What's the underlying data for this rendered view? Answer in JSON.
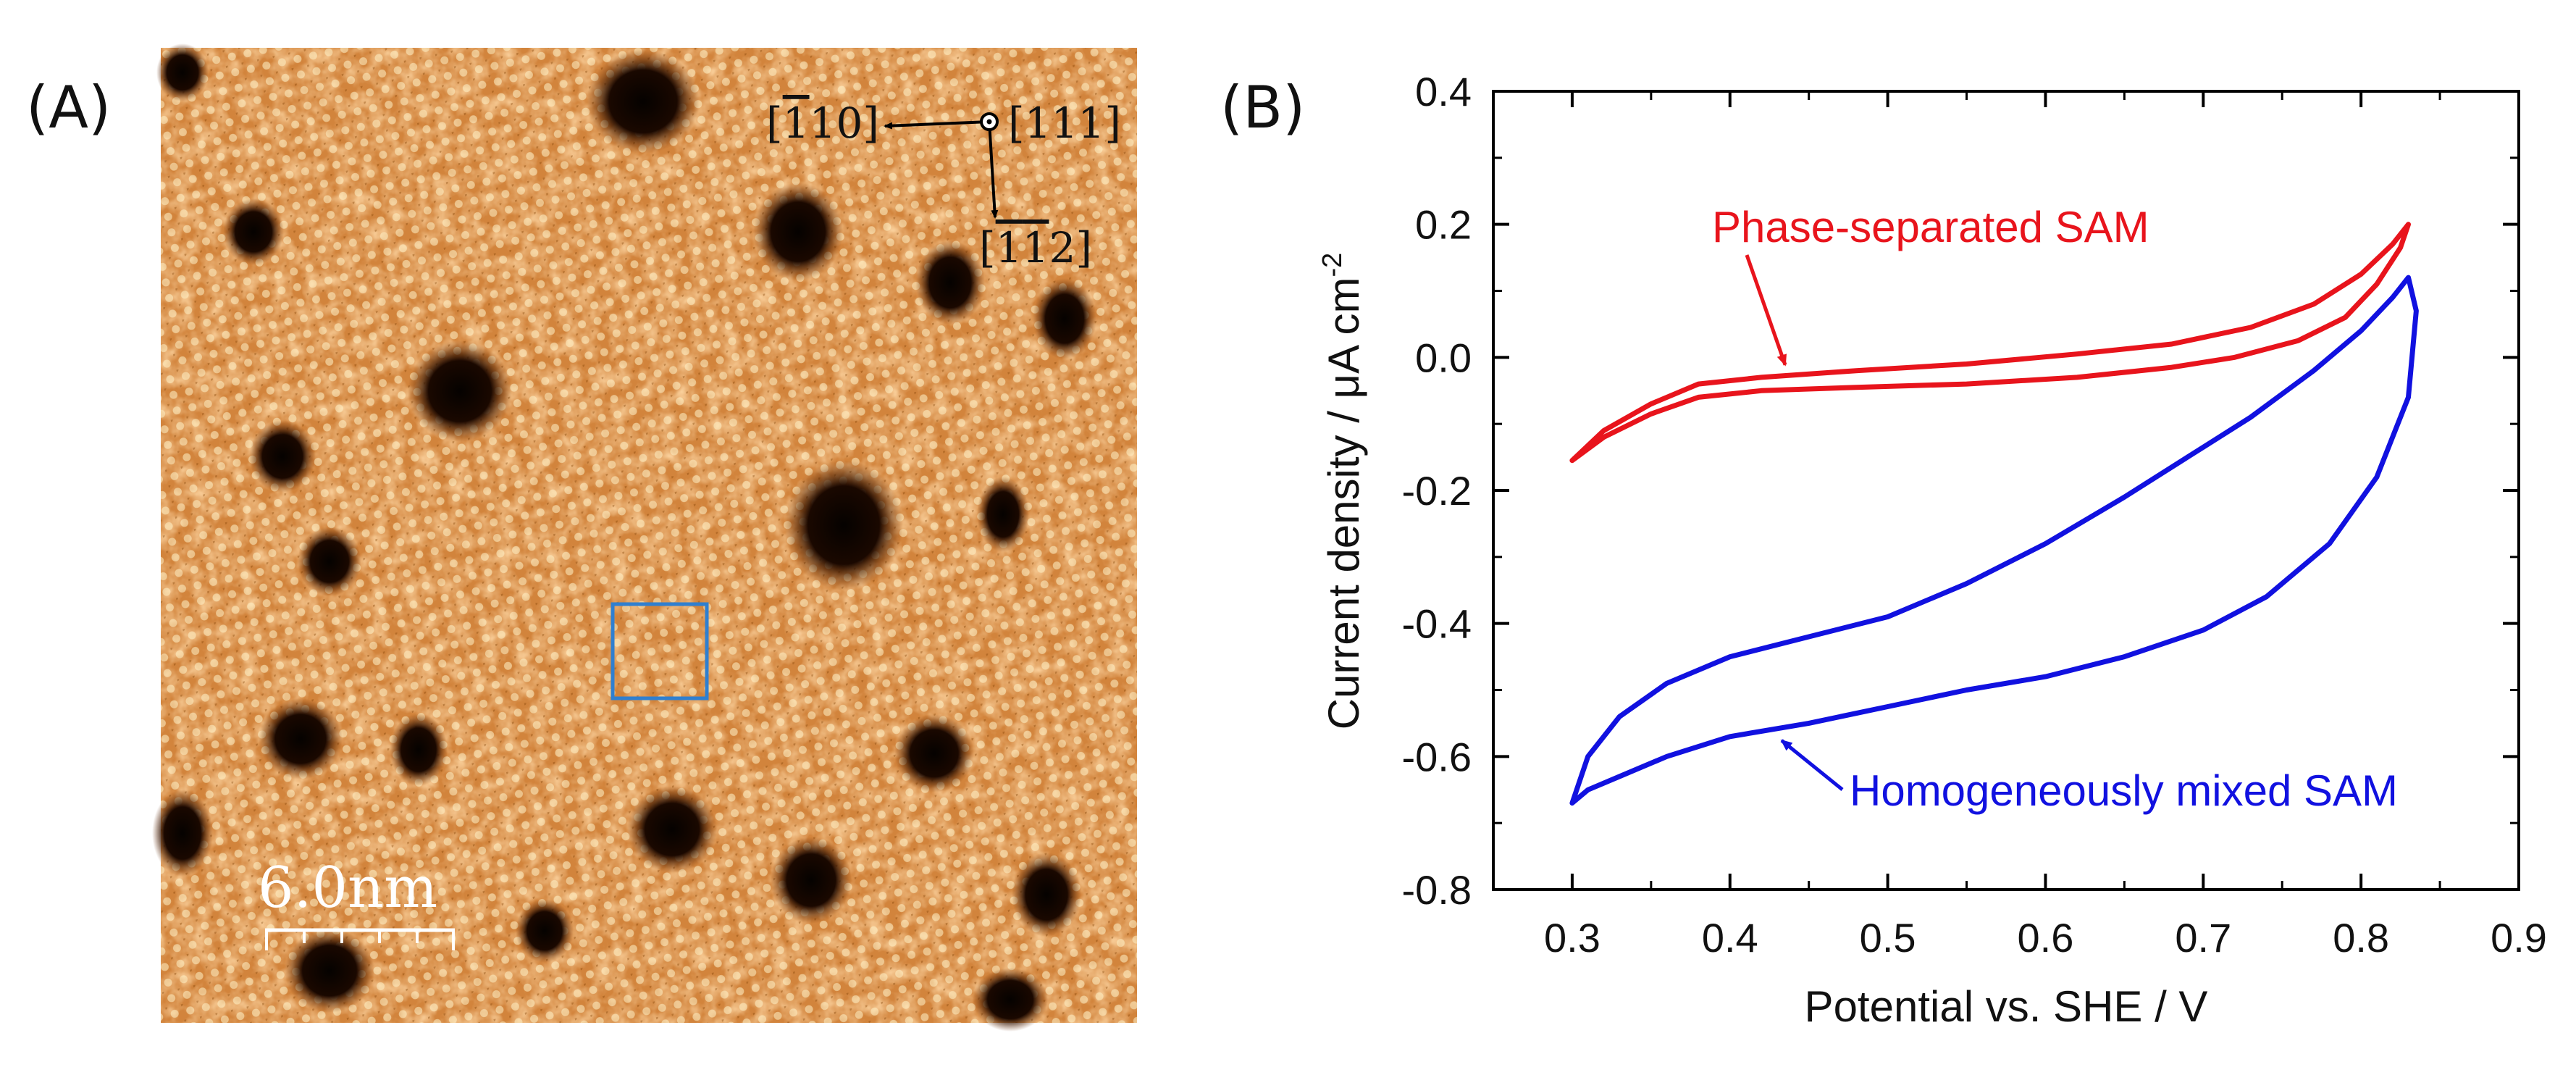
{
  "panel_a": {
    "label": "(A)",
    "directions": {
      "d1": "[1̅ 10]",
      "d2": "[111]",
      "d3": "[1̅ 1̅ 2]"
    },
    "d1_main": "[",
    "d1_bar": "1",
    "d1_rest": "10]",
    "d3_open": "[",
    "d3_bar1": "1",
    "d3_bar2": "1",
    "d3_rest": "2]",
    "d2_text": "[111]",
    "scale_bar_label": "6.0nm"
  },
  "chart_data": {
    "type": "line",
    "panel_label": "(B)",
    "xlabel": "Potential vs. SHE / V",
    "ylabel": "Current density / μA cm",
    "ylabel_sup": "-2",
    "xlim": [
      0.25,
      0.9
    ],
    "ylim": [
      -0.8,
      0.4
    ],
    "xticks": [
      "0.3",
      "0.4",
      "0.5",
      "0.6",
      "0.7",
      "0.8",
      "0.9"
    ],
    "yticks": [
      "0.4",
      "0.2",
      "0.0",
      "-0.2",
      "-0.4",
      "-0.6",
      "-0.8"
    ],
    "series": [
      {
        "name": "Phase-separated SAM",
        "color": "#e8141c",
        "x": [
          0.3,
          0.32,
          0.35,
          0.38,
          0.42,
          0.48,
          0.55,
          0.62,
          0.68,
          0.72,
          0.76,
          0.79,
          0.81,
          0.825,
          0.83,
          0.82,
          0.8,
          0.77,
          0.73,
          0.68,
          0.62,
          0.55,
          0.48,
          0.42,
          0.38,
          0.35,
          0.32,
          0.3
        ],
        "y": [
          -0.155,
          -0.12,
          -0.085,
          -0.06,
          -0.05,
          -0.045,
          -0.04,
          -0.03,
          -0.015,
          0.0,
          0.025,
          0.06,
          0.11,
          0.165,
          0.2,
          0.17,
          0.125,
          0.08,
          0.045,
          0.02,
          0.005,
          -0.01,
          -0.02,
          -0.03,
          -0.04,
          -0.07,
          -0.11,
          -0.155
        ]
      },
      {
        "name": "Homogeneously mixed SAM",
        "color": "#1111e0",
        "x": [
          0.3,
          0.31,
          0.33,
          0.36,
          0.4,
          0.45,
          0.5,
          0.55,
          0.6,
          0.65,
          0.7,
          0.74,
          0.78,
          0.81,
          0.83,
          0.835,
          0.83,
          0.82,
          0.8,
          0.77,
          0.73,
          0.69,
          0.65,
          0.6,
          0.55,
          0.5,
          0.45,
          0.4,
          0.36,
          0.33,
          0.31,
          0.3
        ],
        "y": [
          -0.67,
          -0.65,
          -0.63,
          -0.6,
          -0.57,
          -0.55,
          -0.525,
          -0.5,
          -0.48,
          -0.45,
          -0.41,
          -0.36,
          -0.28,
          -0.18,
          -0.06,
          0.07,
          0.12,
          0.09,
          0.04,
          -0.02,
          -0.09,
          -0.15,
          -0.21,
          -0.28,
          -0.34,
          -0.39,
          -0.42,
          -0.45,
          -0.49,
          -0.54,
          -0.6,
          -0.67
        ]
      }
    ],
    "annotations": [
      {
        "text": "Phase-separated SAM",
        "series": 0
      },
      {
        "text": "Homogeneously mixed SAM",
        "series": 1
      }
    ]
  }
}
